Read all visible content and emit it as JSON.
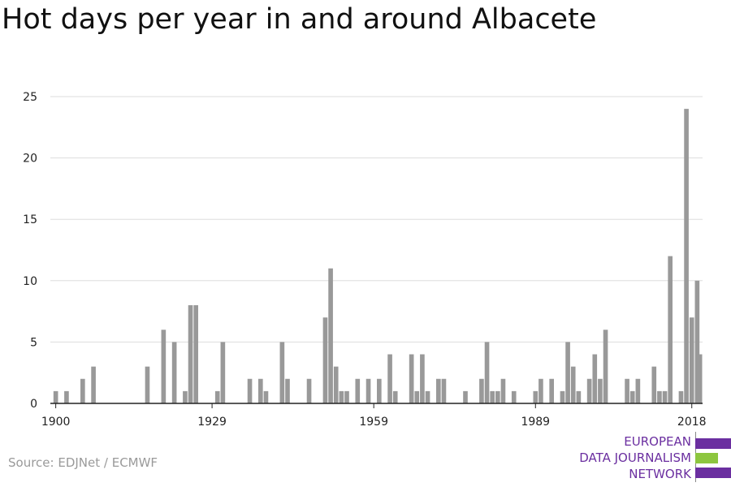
{
  "title": "Hot days per year in and around Albacete",
  "source": "Source: EDJNet / ECMWF",
  "logo": {
    "lines": [
      "EUROPEAN",
      "DATA JOURNALISM",
      "NETWORK"
    ],
    "colors": {
      "purple": "#6b2fa0",
      "green": "#8dc63f"
    }
  },
  "colors": {
    "bar": "#999999",
    "grid": "#dddddd",
    "axis": "#222222"
  },
  "chart_data": {
    "type": "bar",
    "xlim": [
      1899,
      2020
    ],
    "ylim": [
      0,
      25
    ],
    "yticks": [
      0,
      5,
      10,
      15,
      20,
      25
    ],
    "xticks": [
      1900,
      1929,
      1959,
      1989,
      2018
    ],
    "grid": true,
    "xlabel": "",
    "ylabel": "",
    "series": [
      {
        "x": [
          1900,
          1901,
          1902,
          1903,
          1904,
          1905,
          1906,
          1907,
          1908,
          1909,
          1910,
          1911,
          1912,
          1913,
          1914,
          1915,
          1916,
          1917,
          1918,
          1919,
          1920,
          1921,
          1922,
          1923,
          1924,
          1925,
          1926,
          1927,
          1928,
          1929,
          1930,
          1931,
          1932,
          1933,
          1934,
          1935,
          1936,
          1937,
          1938,
          1939,
          1940,
          1941,
          1942,
          1943,
          1944,
          1945,
          1946,
          1947,
          1948,
          1949,
          1950,
          1951,
          1952,
          1953,
          1954,
          1955,
          1956,
          1957,
          1958,
          1959,
          1960,
          1961,
          1962,
          1963,
          1964,
          1965,
          1966,
          1967,
          1968,
          1969,
          1970,
          1971,
          1972,
          1973,
          1974,
          1975,
          1976,
          1977,
          1978,
          1979,
          1980,
          1981,
          1982,
          1983,
          1984,
          1985,
          1986,
          1987,
          1988,
          1989,
          1990,
          1991,
          1992,
          1993,
          1994,
          1995,
          1996,
          1997,
          1998,
          1999,
          2000,
          2001,
          2002,
          2003,
          2004,
          2005,
          2006,
          2007,
          2008,
          2009,
          2010,
          2011,
          2012,
          2013,
          2014,
          2015,
          2016,
          2017,
          2018,
          2019
        ],
        "values": [
          1,
          0,
          1,
          0,
          0,
          2,
          0,
          3,
          0,
          0,
          0,
          0,
          0,
          0,
          0,
          0,
          0,
          3,
          0,
          0,
          6,
          0,
          5,
          0,
          1,
          8,
          8,
          0,
          0,
          0,
          1,
          5,
          0,
          0,
          0,
          0,
          2,
          0,
          2,
          1,
          0,
          0,
          5,
          2,
          0,
          0,
          0,
          2,
          0,
          0,
          7,
          11,
          3,
          1,
          1,
          0,
          2,
          0,
          2,
          0,
          2,
          0,
          4,
          1,
          0,
          0,
          4,
          1,
          4,
          1,
          0,
          2,
          2,
          0,
          0,
          0,
          1,
          0,
          0,
          2,
          5,
          1,
          1,
          2,
          0,
          1,
          0,
          0,
          0,
          1,
          2,
          0,
          2,
          0,
          1,
          5,
          3,
          1,
          0,
          2,
          4,
          2,
          6,
          0,
          0,
          0,
          2,
          1,
          2,
          0,
          0,
          3,
          1,
          1,
          12,
          0,
          1,
          24,
          7,
          10
        ],
        "extra": {
          "x": [
            2019
          ],
          "values": [
            4
          ]
        }
      }
    ]
  }
}
